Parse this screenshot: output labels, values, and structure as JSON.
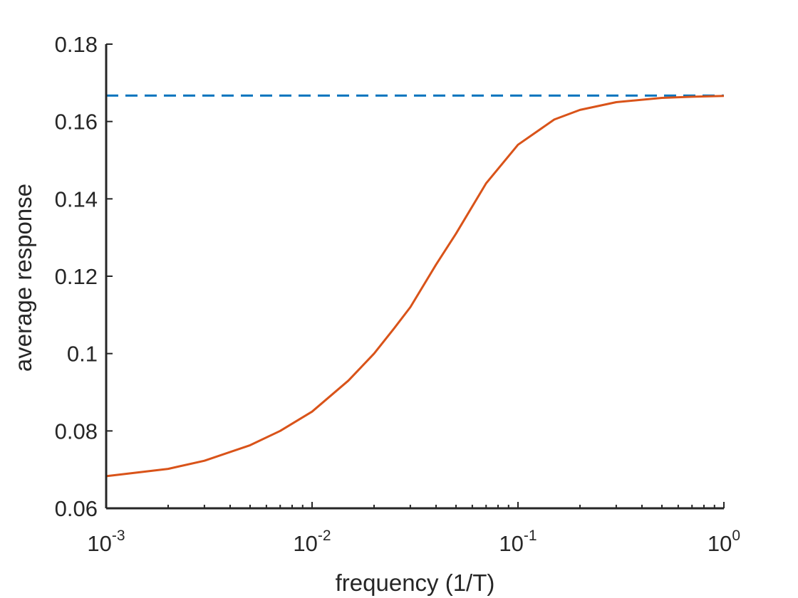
{
  "chart_data": {
    "type": "line",
    "title": "",
    "xlabel": "frequency (1/T)",
    "ylabel": "average response",
    "xscale": "log",
    "xlim": [
      0.001,
      1
    ],
    "ylim": [
      0.06,
      0.18
    ],
    "grid": false,
    "x_ticks": [
      {
        "value": 0.001,
        "base": "10",
        "exp": "-3"
      },
      {
        "value": 0.01,
        "base": "10",
        "exp": "-2"
      },
      {
        "value": 0.1,
        "base": "10",
        "exp": "-1"
      },
      {
        "value": 1,
        "base": "10",
        "exp": "0"
      }
    ],
    "y_ticks": [
      {
        "value": 0.06,
        "label": "0.06"
      },
      {
        "value": 0.08,
        "label": "0.08"
      },
      {
        "value": 0.1,
        "label": "0.1"
      },
      {
        "value": 0.12,
        "label": "0.12"
      },
      {
        "value": 0.14,
        "label": "0.14"
      },
      {
        "value": 0.16,
        "label": "0.16"
      },
      {
        "value": 0.18,
        "label": "0.18"
      }
    ],
    "series": [
      {
        "style": "dashed",
        "color": "#0072BD",
        "x": [
          0.001,
          1
        ],
        "y": [
          0.1667,
          0.1667
        ]
      },
      {
        "style": "solid",
        "color": "#D95319",
        "x": [
          0.001,
          0.002,
          0.003,
          0.005,
          0.007,
          0.01,
          0.015,
          0.02,
          0.025,
          0.03,
          0.04,
          0.05,
          0.07,
          0.1,
          0.15,
          0.2,
          0.3,
          0.5,
          0.7,
          1.0
        ],
        "y": [
          0.0683,
          0.0702,
          0.0723,
          0.0763,
          0.08,
          0.085,
          0.093,
          0.1,
          0.1065,
          0.112,
          0.123,
          0.131,
          0.144,
          0.154,
          0.1605,
          0.163,
          0.165,
          0.1661,
          0.1664,
          0.1666
        ]
      }
    ]
  }
}
